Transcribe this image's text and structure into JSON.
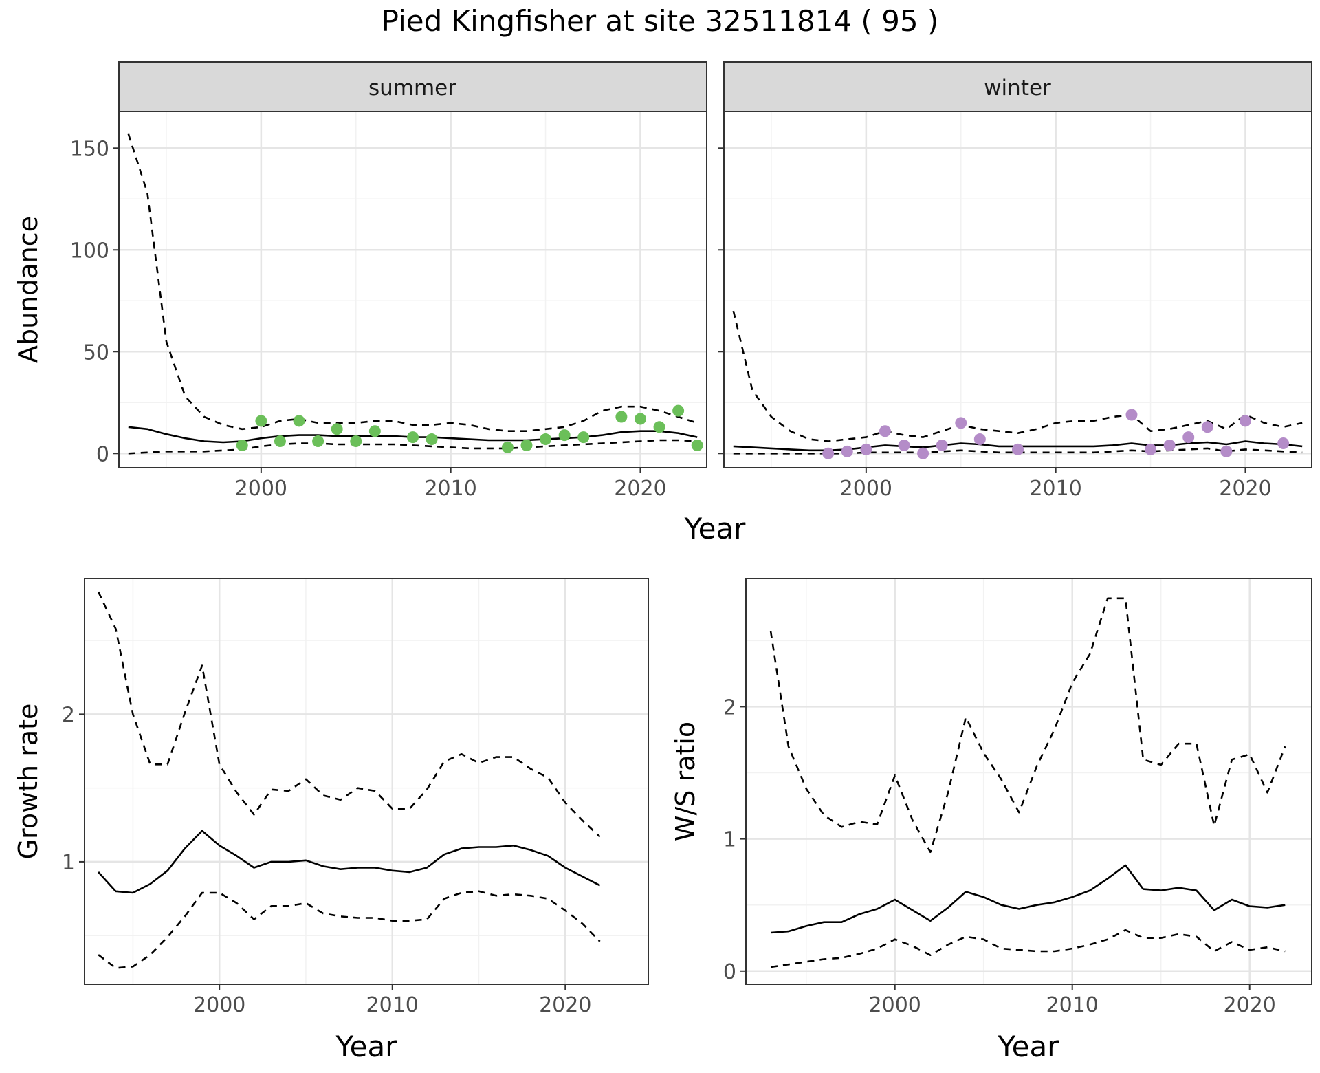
{
  "figure": {
    "title": "Pied Kingfisher at site 32511814 ( 95 )"
  },
  "chart_data": [
    {
      "type": "line",
      "panel": "summer",
      "facet_label": "summer",
      "xlabel": "Year",
      "ylabel": "Abundance",
      "xlim": [
        1992.5,
        2023.5
      ],
      "ylim": [
        -7,
        168
      ],
      "xticks": [
        2000,
        2010,
        2020
      ],
      "yticks": [
        0,
        50,
        100,
        150
      ],
      "grid": true,
      "point_color": "#6bbf59",
      "lines": [
        {
          "style": "solid",
          "x": [
            1993,
            1994,
            1995,
            1996,
            1997,
            1998,
            1999,
            2000,
            2001,
            2002,
            2003,
            2004,
            2005,
            2006,
            2007,
            2008,
            2009,
            2010,
            2011,
            2012,
            2013,
            2014,
            2015,
            2016,
            2017,
            2018,
            2019,
            2020,
            2021,
            2022,
            2023
          ],
          "y": [
            13,
            12,
            9.5,
            7.5,
            6,
            5.5,
            6,
            7.5,
            8.5,
            9,
            9,
            8.5,
            8.5,
            8.5,
            8.5,
            8,
            8,
            7.5,
            7,
            6.5,
            6.5,
            6.5,
            7,
            7.5,
            8,
            9,
            10.5,
            11,
            11,
            10,
            8
          ]
        },
        {
          "style": "dashed",
          "x": [
            1993,
            1994,
            1995,
            1996,
            1997,
            1998,
            1999,
            2000,
            2001,
            2002,
            2003,
            2004,
            2005,
            2006,
            2007,
            2008,
            2009,
            2010,
            2011,
            2012,
            2013,
            2014,
            2015,
            2016,
            2017,
            2018,
            2019,
            2020,
            2021,
            2022,
            2023
          ],
          "y": [
            157,
            128,
            55,
            28,
            18,
            14,
            12,
            13,
            16,
            17,
            15,
            15,
            15,
            16,
            16,
            14,
            14,
            15,
            14,
            12,
            11,
            11,
            12,
            13,
            16,
            21,
            23,
            23,
            21,
            18,
            15
          ]
        },
        {
          "style": "dashed",
          "x": [
            1993,
            1994,
            1995,
            1996,
            1997,
            1998,
            1999,
            2000,
            2001,
            2002,
            2003,
            2004,
            2005,
            2006,
            2007,
            2008,
            2009,
            2010,
            2011,
            2012,
            2013,
            2014,
            2015,
            2016,
            2017,
            2018,
            2019,
            2020,
            2021,
            2022,
            2023
          ],
          "y": [
            0,
            0.5,
            1,
            1,
            1,
            1.5,
            2,
            3.5,
            4.5,
            5,
            5,
            4.5,
            4.5,
            4.5,
            4.5,
            4,
            3.5,
            3,
            2.5,
            2.5,
            2.5,
            3,
            3.5,
            4,
            4.5,
            5,
            5.5,
            6,
            6.5,
            6.5,
            6
          ]
        }
      ],
      "points": {
        "x": [
          1999,
          2000,
          2001,
          2002,
          2003,
          2004,
          2005,
          2006,
          2008,
          2009,
          2013,
          2014,
          2015,
          2016,
          2017,
          2019,
          2020,
          2021,
          2022,
          2023
        ],
        "y": [
          4,
          16,
          6,
          16,
          6,
          12,
          6,
          11,
          8,
          7,
          3,
          4,
          7,
          9,
          8,
          18,
          17,
          13,
          21,
          4
        ]
      }
    },
    {
      "type": "line",
      "panel": "winter",
      "facet_label": "winter",
      "xlabel": "Year",
      "ylabel": "",
      "xlim": [
        1992.5,
        2023.5
      ],
      "ylim": [
        -7,
        168
      ],
      "xticks": [
        2000,
        2010,
        2020
      ],
      "yticks": [
        0,
        50,
        100,
        150
      ],
      "grid": true,
      "point_color": "#b48cc8",
      "lines": [
        {
          "style": "solid",
          "x": [
            1993,
            1994,
            1995,
            1996,
            1997,
            1998,
            1999,
            2000,
            2001,
            2002,
            2003,
            2004,
            2005,
            2006,
            2007,
            2008,
            2009,
            2010,
            2011,
            2012,
            2013,
            2014,
            2015,
            2016,
            2017,
            2018,
            2019,
            2020,
            2021,
            2022,
            2023
          ],
          "y": [
            3.5,
            3,
            2.5,
            2,
            1.5,
            1.5,
            2,
            3,
            4,
            3.5,
            3,
            4,
            5,
            4.5,
            3.5,
            3.5,
            3.5,
            3.5,
            3.5,
            3.5,
            4,
            5,
            4,
            4,
            5,
            5.5,
            4.5,
            6,
            5,
            4.5,
            3.5
          ]
        },
        {
          "style": "dashed",
          "x": [
            1993,
            1994,
            1995,
            1996,
            1997,
            1998,
            1999,
            2000,
            2001,
            2002,
            2003,
            2004,
            2005,
            2006,
            2007,
            2008,
            2009,
            2010,
            2011,
            2012,
            2013,
            2014,
            2015,
            2016,
            2017,
            2018,
            2019,
            2020,
            2021,
            2022,
            2023
          ],
          "y": [
            70,
            31,
            18,
            11,
            7,
            6,
            7,
            8,
            11,
            9,
            8,
            11,
            14,
            12,
            11,
            10,
            12,
            15,
            16,
            16,
            18,
            19,
            11,
            12,
            14,
            16,
            12,
            19,
            15,
            13,
            15
          ]
        },
        {
          "style": "dashed",
          "x": [
            1993,
            1994,
            1995,
            1996,
            1997,
            1998,
            1999,
            2000,
            2001,
            2002,
            2003,
            2004,
            2005,
            2006,
            2007,
            2008,
            2009,
            2010,
            2011,
            2012,
            2013,
            2014,
            2015,
            2016,
            2017,
            2018,
            2019,
            2020,
            2021,
            2022,
            2023
          ],
          "y": [
            0,
            0,
            0,
            0,
            0,
            0,
            0,
            0.5,
            0.5,
            0.5,
            0.5,
            1,
            1.5,
            1,
            0.5,
            0.5,
            0.5,
            0.5,
            0.5,
            0.5,
            1,
            1.5,
            1,
            1.5,
            2,
            2.5,
            1,
            2,
            1.5,
            1,
            0.5
          ]
        }
      ],
      "points": {
        "x": [
          1998,
          1999,
          2000,
          2001,
          2002,
          2003,
          2004,
          2005,
          2006,
          2008,
          2014,
          2015,
          2016,
          2017,
          2018,
          2019,
          2020,
          2022
        ],
        "y": [
          0,
          1,
          2,
          11,
          4,
          0,
          4,
          15,
          7,
          2,
          19,
          2,
          4,
          8,
          13,
          1,
          16,
          5
        ]
      }
    },
    {
      "type": "line",
      "panel": "growth",
      "xlabel": "Year",
      "ylabel": "Growth rate",
      "xlim": [
        1992.2,
        2024.8
      ],
      "ylim": [
        0.17,
        2.92
      ],
      "xticks": [
        2000,
        2010,
        2020
      ],
      "yticks": [
        1,
        2
      ],
      "grid": true,
      "lines": [
        {
          "style": "solid",
          "x": [
            1993,
            1994,
            1995,
            1996,
            1997,
            1998,
            1999,
            2000,
            2001,
            2002,
            2003,
            2004,
            2005,
            2006,
            2007,
            2008,
            2009,
            2010,
            2011,
            2012,
            2013,
            2014,
            2015,
            2016,
            2017,
            2018,
            2019,
            2020,
            2021,
            2022
          ],
          "y": [
            0.93,
            0.8,
            0.79,
            0.85,
            0.94,
            1.09,
            1.21,
            1.11,
            1.04,
            0.96,
            1.0,
            1.0,
            1.01,
            0.97,
            0.95,
            0.96,
            0.96,
            0.94,
            0.93,
            0.96,
            1.05,
            1.09,
            1.1,
            1.1,
            1.11,
            1.08,
            1.04,
            0.96,
            0.9,
            0.84
          ]
        },
        {
          "style": "dashed",
          "x": [
            1993,
            1994,
            1995,
            1996,
            1997,
            1998,
            1999,
            2000,
            2001,
            2002,
            2003,
            2004,
            2005,
            2006,
            2007,
            2008,
            2009,
            2010,
            2011,
            2012,
            2013,
            2014,
            2015,
            2016,
            2017,
            2018,
            2019,
            2020,
            2021,
            2022
          ],
          "y": [
            2.83,
            2.58,
            2.0,
            1.66,
            1.66,
            2.01,
            2.33,
            1.66,
            1.47,
            1.32,
            1.49,
            1.48,
            1.56,
            1.45,
            1.42,
            1.5,
            1.48,
            1.36,
            1.36,
            1.49,
            1.68,
            1.73,
            1.67,
            1.71,
            1.71,
            1.63,
            1.57,
            1.4,
            1.28,
            1.17
          ]
        },
        {
          "style": "dashed",
          "x": [
            1993,
            1994,
            1995,
            1996,
            1997,
            1998,
            1999,
            2000,
            2001,
            2002,
            2003,
            2004,
            2005,
            2006,
            2007,
            2008,
            2009,
            2010,
            2011,
            2012,
            2013,
            2014,
            2015,
            2016,
            2017,
            2018,
            2019,
            2020,
            2021,
            2022
          ],
          "y": [
            0.37,
            0.28,
            0.29,
            0.37,
            0.49,
            0.63,
            0.79,
            0.79,
            0.72,
            0.61,
            0.7,
            0.7,
            0.72,
            0.65,
            0.63,
            0.62,
            0.62,
            0.6,
            0.6,
            0.61,
            0.75,
            0.79,
            0.8,
            0.77,
            0.78,
            0.77,
            0.75,
            0.67,
            0.58,
            0.46
          ]
        }
      ]
    },
    {
      "type": "line",
      "panel": "ws",
      "xlabel": "Year",
      "ylabel": "W/S ratio",
      "xlim": [
        1991.6,
        2023.5
      ],
      "ylim": [
        -0.1,
        2.97
      ],
      "xticks": [
        2000,
        2010,
        2020
      ],
      "yticks": [
        0,
        1,
        2
      ],
      "grid": true,
      "lines": [
        {
          "style": "solid",
          "x": [
            1993,
            1994,
            1995,
            1996,
            1997,
            1998,
            1999,
            2000,
            2001,
            2002,
            2003,
            2004,
            2005,
            2006,
            2007,
            2008,
            2009,
            2010,
            2011,
            2012,
            2013,
            2014,
            2015,
            2016,
            2017,
            2018,
            2019,
            2020,
            2021,
            2022
          ],
          "y": [
            0.29,
            0.3,
            0.34,
            0.37,
            0.37,
            0.43,
            0.47,
            0.54,
            0.46,
            0.38,
            0.48,
            0.6,
            0.56,
            0.5,
            0.47,
            0.5,
            0.52,
            0.56,
            0.61,
            0.7,
            0.8,
            0.62,
            0.61,
            0.63,
            0.61,
            0.46,
            0.54,
            0.49,
            0.48,
            0.5
          ]
        },
        {
          "style": "dashed",
          "x": [
            1993,
            1994,
            1995,
            1996,
            1997,
            1998,
            1999,
            2000,
            2001,
            2002,
            2003,
            2004,
            2005,
            2006,
            2007,
            2008,
            2009,
            2010,
            2011,
            2012,
            2013,
            2014,
            2015,
            2016,
            2017,
            2018,
            2019,
            2020,
            2021,
            2022
          ],
          "y": [
            2.57,
            1.7,
            1.38,
            1.18,
            1.09,
            1.13,
            1.11,
            1.48,
            1.14,
            0.9,
            1.35,
            1.92,
            1.65,
            1.45,
            1.2,
            1.55,
            1.83,
            2.18,
            2.4,
            2.82,
            2.82,
            1.6,
            1.56,
            1.72,
            1.72,
            1.1,
            1.6,
            1.64,
            1.35,
            1.7
          ]
        },
        {
          "style": "dashed",
          "x": [
            1993,
            1994,
            1995,
            1996,
            1997,
            1998,
            1999,
            2000,
            2001,
            2002,
            2003,
            2004,
            2005,
            2006,
            2007,
            2008,
            2009,
            2010,
            2011,
            2012,
            2013,
            2014,
            2015,
            2016,
            2017,
            2018,
            2019,
            2020,
            2021,
            2022
          ],
          "y": [
            0.03,
            0.05,
            0.07,
            0.09,
            0.1,
            0.13,
            0.17,
            0.24,
            0.19,
            0.12,
            0.2,
            0.26,
            0.24,
            0.17,
            0.16,
            0.15,
            0.15,
            0.17,
            0.2,
            0.24,
            0.31,
            0.25,
            0.25,
            0.28,
            0.26,
            0.15,
            0.22,
            0.16,
            0.18,
            0.15
          ]
        }
      ]
    }
  ]
}
